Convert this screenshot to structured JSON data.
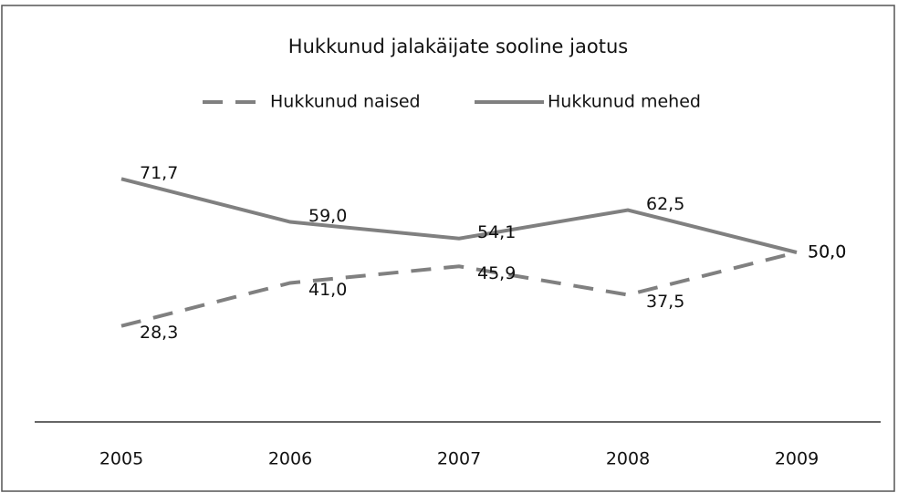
{
  "chart_data": {
    "type": "line",
    "title": "Hukkunud jalakäijate sooline jaotus",
    "categories": [
      "2005",
      "2006",
      "2007",
      "2008",
      "2009"
    ],
    "series": [
      {
        "name": "Hukkunud naised",
        "color": "#808080",
        "dashed": true,
        "values": [
          28.3,
          41.0,
          45.9,
          37.5,
          50.0
        ],
        "value_labels": [
          "28,3",
          "41,0",
          "45,9",
          "37,5",
          "50,0"
        ]
      },
      {
        "name": "Hukkunud mehed",
        "color": "#808080",
        "dashed": false,
        "values": [
          71.7,
          59.0,
          54.1,
          62.5,
          50.0
        ],
        "value_labels": [
          "71,7",
          "59,0",
          "54,1",
          "62,5",
          "50,0"
        ]
      }
    ],
    "ylim": [
      0,
      100
    ],
    "legend": "top"
  }
}
